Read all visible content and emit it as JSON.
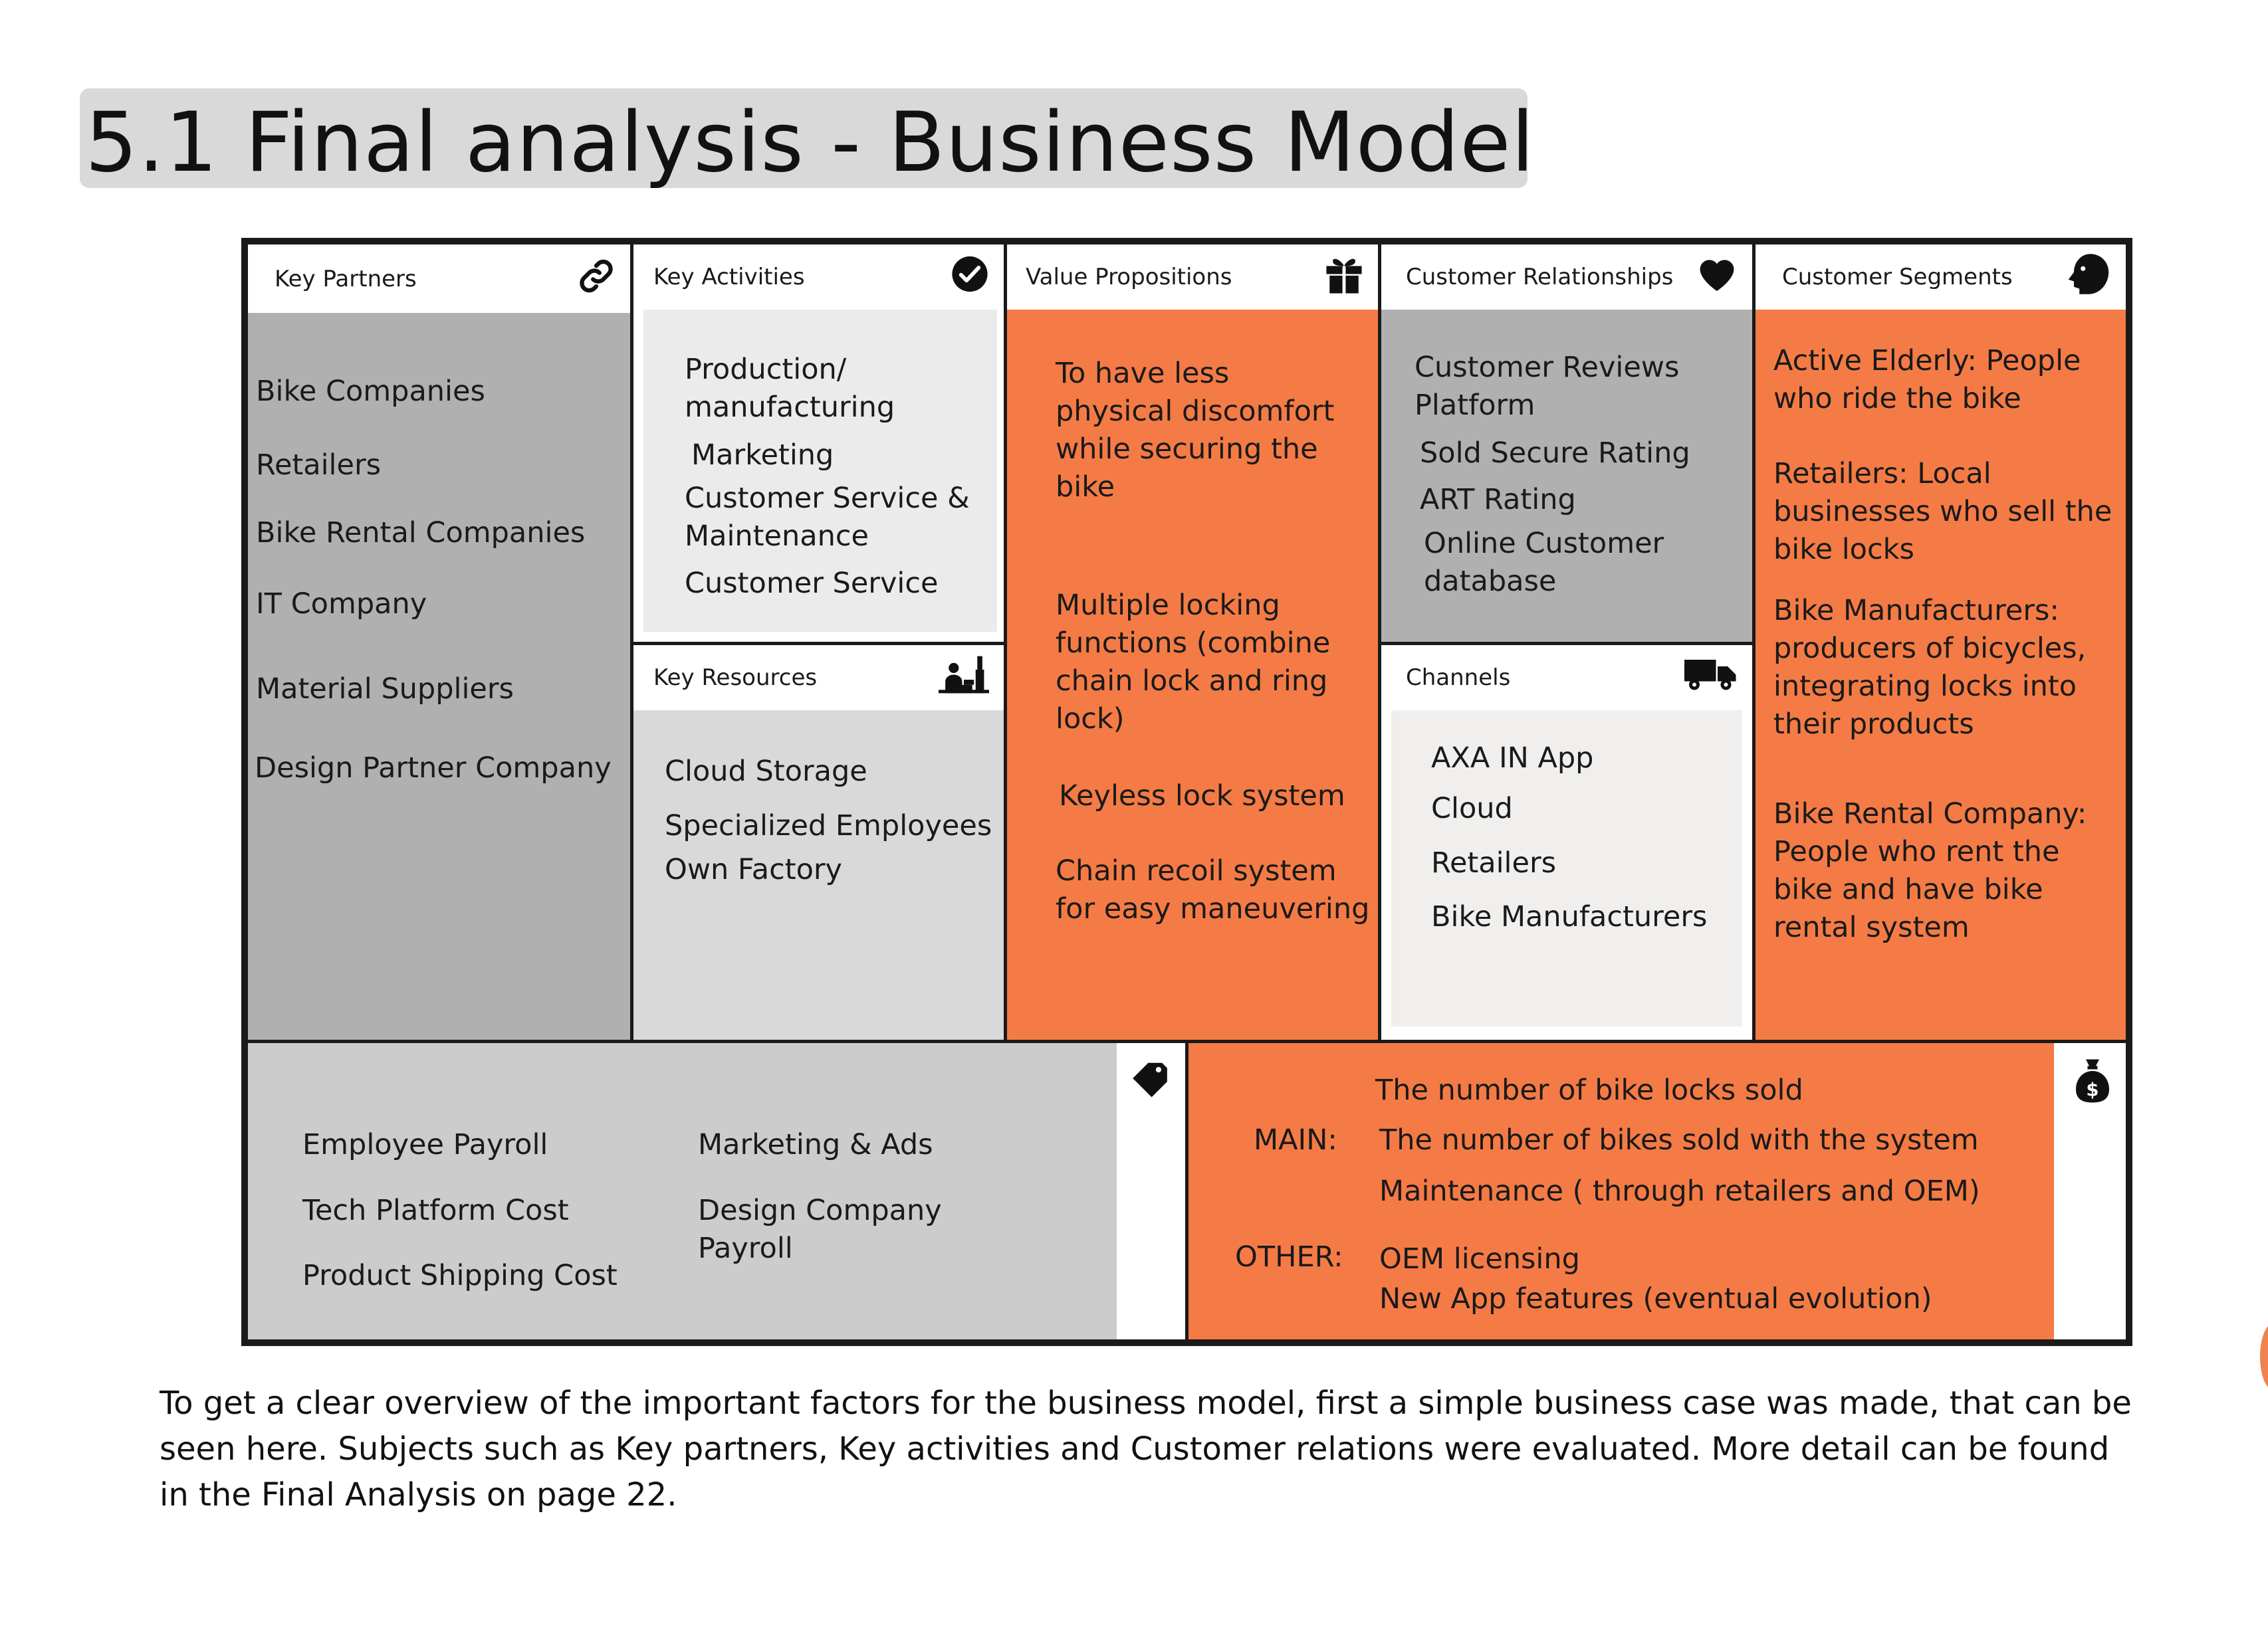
{
  "title": "5.1 Final analysis - Business Model",
  "colors": {
    "orange": "#f47b45",
    "gray_dark": "#b0b0b0",
    "gray_mid": "#cccccc",
    "gray_light": "#e6e6e6",
    "gray_lighter": "#efefef",
    "border": "#1a1a1a"
  },
  "key_partners": {
    "label": "Key Partners",
    "icon": "link-icon",
    "items": [
      "Bike Companies",
      "Retailers",
      "Bike Rental Companies",
      "IT Company",
      "Material Suppliers",
      "Design Partner Company"
    ]
  },
  "key_activities": {
    "label": "Key Activities",
    "icon": "checkmark-icon",
    "items": [
      "Production/",
      "manufacturing",
      "Marketing",
      "Customer Service &",
      "Maintenance",
      "Customer Service"
    ]
  },
  "key_resources": {
    "label": "Key Resources",
    "icon": "factory-worker-icon",
    "items": [
      "Cloud Storage",
      "Specialized Employees",
      "Own Factory"
    ]
  },
  "value_propositions": {
    "label": "Value Propositions",
    "icon": "gift-icon",
    "items": [
      "To have less",
      "physical discomfort",
      "while securing the",
      "bike",
      "Multiple locking",
      "functions (combine",
      "chain lock and ring",
      "lock)",
      "Keyless lock system",
      "Chain recoil system",
      "for easy maneuvering"
    ]
  },
  "customer_relationships": {
    "label": "Customer Relationships",
    "icon": "heart-icon",
    "items": [
      "Customer Reviews",
      "Platform",
      "Sold Secure Rating",
      "ART Rating",
      "Online Customer",
      "database"
    ]
  },
  "channels": {
    "label": "Channels",
    "icon": "truck-icon",
    "items": [
      "AXA IN App",
      "Cloud",
      "Retailers",
      "Bike Manufacturers"
    ]
  },
  "customer_segments": {
    "label": "Customer Segments",
    "icon": "person-head-icon",
    "items": [
      "Active Elderly: People",
      "who ride the bike",
      "Retailers: Local",
      "businesses who sell the",
      "bike locks",
      "Bike Manufacturers:",
      "producers of bicycles,",
      "integrating locks into",
      "their products",
      "Bike Rental Company:",
      "People who rent the",
      "bike and have bike",
      "rental system"
    ]
  },
  "cost_structure": {
    "icon": "price-tag-icon",
    "items": [
      "Employee Payroll",
      "Tech Platform Cost",
      "Product Shipping Cost",
      "Marketing & Ads",
      "Design Company",
      "Payroll"
    ]
  },
  "revenue_streams": {
    "icon": "money-bag-icon",
    "main_label": "MAIN:",
    "other_label": "OTHER:",
    "items": [
      "The number of bike locks sold",
      "The number of bikes sold with the system",
      "Maintenance ( through retailers and OEM)",
      "OEM licensing",
      "New App features (eventual evolution)"
    ]
  },
  "paragraph": [
    "To get a clear overview of the important factors for the business model, first a simple business case was made, that can be",
    "seen here. Subjects such as Key partners, Key activities and Customer relations were evaluated. More detail can be found",
    "in the Final Analysis on page 22."
  ]
}
